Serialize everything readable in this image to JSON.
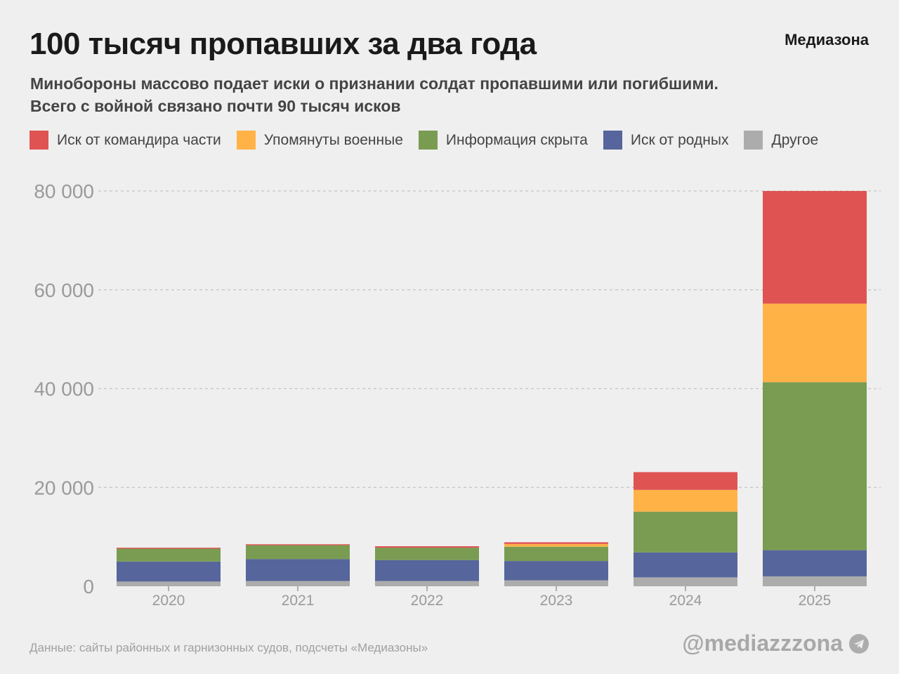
{
  "header": {
    "title": "100 тысяч пропавших за два года",
    "brand": "Медиазона",
    "subtitle_line1": "Минобороны массово подает иски о признании солдат пропавшими или погибшими.",
    "subtitle_line2": "Всего с войной связано почти 90 тысяч исков"
  },
  "footer": {
    "source": "Данные: сайты районных и гарнизонных судов, подсчеты «Медиазоны»",
    "handle": "@mediazzzona",
    "handle_icon": "telegram-icon"
  },
  "chart_data": {
    "type": "bar",
    "stacked": true,
    "categories": [
      "2020",
      "2021",
      "2022",
      "2023",
      "2024",
      "2025"
    ],
    "ylim": [
      0,
      80000
    ],
    "yticks": [
      0,
      20000,
      40000,
      60000,
      80000
    ],
    "ytick_labels": [
      "0",
      "20 000",
      "40 000",
      "60 000",
      "80 000"
    ],
    "grid": true,
    "legend_position": "top",
    "series": [
      {
        "name": "Другое",
        "color": "#acacac",
        "values": [
          950,
          1050,
          1050,
          1200,
          1800,
          2000
        ]
      },
      {
        "name": "Иск от родных",
        "color": "#56659b",
        "values": [
          4050,
          4450,
          4250,
          3900,
          5050,
          5300
        ]
      },
      {
        "name": "Информация скрыта",
        "color": "#7a9c52",
        "values": [
          2600,
          2800,
          2500,
          2900,
          8250,
          34000
        ]
      },
      {
        "name": "Упомянуты военные",
        "color": "#ffb347",
        "values": [
          0,
          0,
          0,
          550,
          4400,
          15900
        ]
      },
      {
        "name": "Иск от командира части",
        "color": "#e05353",
        "values": [
          200,
          200,
          300,
          350,
          3600,
          22800
        ]
      }
    ],
    "legend_order": [
      4,
      3,
      2,
      1,
      0
    ]
  }
}
